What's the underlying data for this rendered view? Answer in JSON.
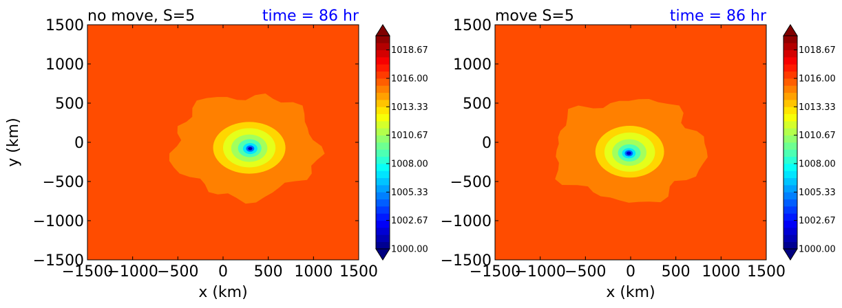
{
  "chart_data": [
    {
      "type": "contour",
      "title_left": "no move, S=5",
      "title_right": "time = 86 hr",
      "title_right_color": "#0000ff",
      "xlabel": "x (km)",
      "ylabel": "y (km)",
      "xlim": [
        -1500,
        1500
      ],
      "ylim": [
        -1500,
        1500
      ],
      "xticks": [
        "−1500",
        "−1000",
        "−500",
        "0",
        "500",
        "1000",
        "1500"
      ],
      "yticks": [
        "1500",
        "1000",
        "500",
        "0",
        "−500",
        "−1000",
        "−1500"
      ],
      "background_level": 1016.0,
      "features": [
        {
          "kind": "outer-ring",
          "level": 1015.0,
          "center": [
            250,
            -50
          ],
          "radii": [
            800,
            660
          ]
        },
        {
          "kind": "ring",
          "level": 1013.3,
          "center": [
            290,
            -70
          ],
          "radii": [
            400,
            330
          ]
        },
        {
          "kind": "ring",
          "level": 1012.0,
          "center": [
            290,
            -70
          ],
          "radii": [
            290,
            250
          ]
        },
        {
          "kind": "ring",
          "level": 1010.7,
          "center": [
            290,
            -75
          ],
          "radii": [
            200,
            175
          ]
        },
        {
          "kind": "ring",
          "level": 1009.0,
          "center": [
            295,
            -75
          ],
          "radii": [
            130,
            115
          ]
        },
        {
          "kind": "ring",
          "level": 1007.0,
          "center": [
            300,
            -80
          ],
          "radii": [
            80,
            70
          ]
        },
        {
          "kind": "ring",
          "level": 1004.5,
          "center": [
            300,
            -80
          ],
          "radii": [
            45,
            40
          ]
        },
        {
          "kind": "core",
          "level": 1001.0,
          "center": [
            300,
            -80
          ],
          "radii": [
            24,
            20
          ]
        }
      ],
      "colorbar": {
        "ticks": [
          "1000.00",
          "1002.67",
          "1005.33",
          "1008.00",
          "1010.67",
          "1013.33",
          "1016.00",
          "1018.67"
        ],
        "range": [
          1000.0,
          1020.0
        ],
        "levels": 30
      }
    },
    {
      "type": "contour",
      "title_left": "move S=5",
      "title_right": "time = 86 hr",
      "title_right_color": "#0000ff",
      "xlabel": "x (km)",
      "ylabel": "",
      "xlim": [
        -1500,
        1500
      ],
      "ylim": [
        -1500,
        1500
      ],
      "xticks": [
        "−1500",
        "−1000",
        "−500",
        "0",
        "500",
        "1000",
        "1500"
      ],
      "yticks": [
        "1500",
        "1000",
        "500",
        "0",
        "−500",
        "−1000",
        "−1500"
      ],
      "background_level": 1016.0,
      "features": [
        {
          "kind": "outer-ring",
          "level": 1015.0,
          "center": [
            -20,
            -100
          ],
          "radii": [
            830,
            650
          ]
        },
        {
          "kind": "ring",
          "level": 1013.3,
          "center": [
            -10,
            -120
          ],
          "radii": [
            380,
            330
          ]
        },
        {
          "kind": "ring",
          "level": 1012.0,
          "center": [
            -10,
            -125
          ],
          "radii": [
            280,
            250
          ]
        },
        {
          "kind": "ring",
          "level": 1010.7,
          "center": [
            -15,
            -130
          ],
          "radii": [
            190,
            170
          ]
        },
        {
          "kind": "ring",
          "level": 1009.0,
          "center": [
            -15,
            -135
          ],
          "radii": [
            125,
            110
          ]
        },
        {
          "kind": "ring",
          "level": 1007.0,
          "center": [
            -20,
            -140
          ],
          "radii": [
            75,
            65
          ]
        },
        {
          "kind": "ring",
          "level": 1004.5,
          "center": [
            -20,
            -140
          ],
          "radii": [
            45,
            40
          ]
        },
        {
          "kind": "core",
          "level": 1001.5,
          "center": [
            -20,
            -140
          ],
          "radii": [
            26,
            22
          ]
        }
      ],
      "colorbar": {
        "ticks": [
          "1000.00",
          "1002.67",
          "1005.33",
          "1008.00",
          "1010.67",
          "1013.33",
          "1016.00",
          "1018.67"
        ],
        "range": [
          1000.0,
          1020.0
        ],
        "levels": 30
      }
    }
  ]
}
